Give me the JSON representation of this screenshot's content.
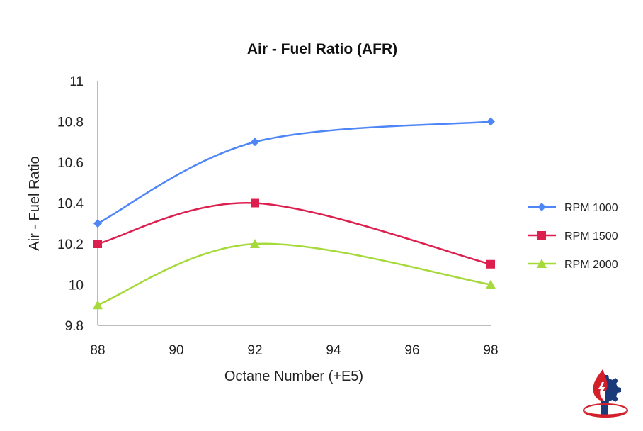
{
  "chart_data": {
    "type": "line",
    "title": "Air - Fuel Ratio (AFR)",
    "xlabel": "Octane Number (+E5)",
    "ylabel": "Air - Fuel Ratio",
    "xlim": [
      88,
      98
    ],
    "ylim": [
      9.8,
      11
    ],
    "x_ticks": [
      "88",
      "90",
      "92",
      "94",
      "96",
      "98"
    ],
    "y_ticks": [
      "9.8",
      "10",
      "10.2",
      "10.4",
      "10.6",
      "10.8",
      "11"
    ],
    "x": [
      88,
      92,
      98
    ],
    "grid": false,
    "legend_position": "right",
    "smooth": true,
    "series": [
      {
        "name": "RPM 1000",
        "values": [
          10.3,
          10.7,
          10.8
        ],
        "color": "#4f86f7",
        "marker": "diamond"
      },
      {
        "name": "RPM 1500",
        "values": [
          10.2,
          10.4,
          10.1
        ],
        "color": "#dc1f4e",
        "marker": "square"
      },
      {
        "name": "RPM 2000",
        "values": [
          9.9,
          10.2,
          10.0
        ],
        "color": "#a6d93a",
        "marker": "triangle"
      }
    ]
  },
  "logo": {
    "icon": "flame-gear-logo-icon",
    "colors": [
      "#1a3a7a",
      "#d21f2a"
    ]
  }
}
